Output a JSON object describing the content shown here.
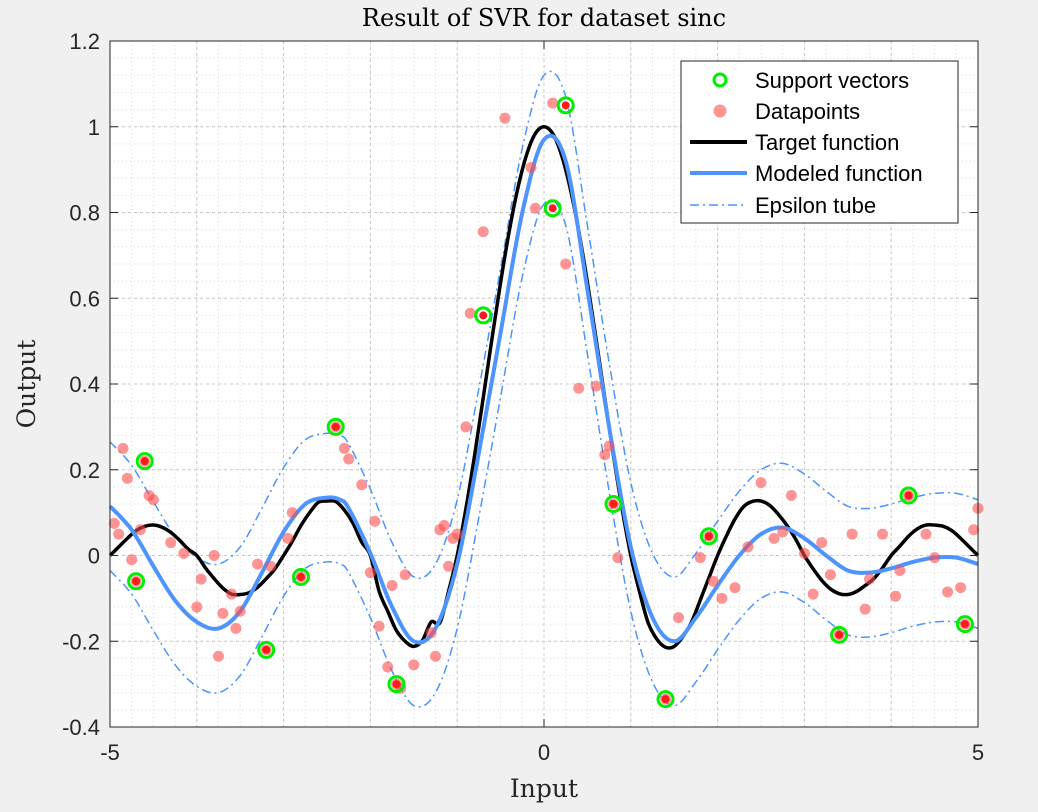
{
  "chart_data": {
    "type": "scatter",
    "title": "Result of SVR for dataset sinc",
    "xlabel": "Input",
    "ylabel": "Output",
    "xlim": [
      -5,
      5
    ],
    "ylim": [
      -0.4,
      1.2
    ],
    "xticks": [
      -5,
      0,
      5
    ],
    "xtick_labels": [
      "-5",
      "0",
      "5"
    ],
    "yticks": [
      -0.4,
      -0.2,
      0,
      0.2,
      0.4,
      0.6,
      0.8,
      1,
      1.2
    ],
    "ytick_labels": [
      "-0.4",
      "-0.2",
      "0",
      "0.2",
      "0.4",
      "0.6",
      "0.8",
      "1",
      "1.2"
    ],
    "grid": true,
    "minor_grid": true,
    "legend_position": "top-right",
    "epsilon": 0.15,
    "colors": {
      "support_vectors": "#00ee00",
      "datapoints": "#ff4d4d",
      "target": "#000000",
      "modeled": "#4d94ff",
      "epsilon_tube": "#4d94ff",
      "plot_background": "#ffffff",
      "figure_background": "#f0f0f0"
    },
    "series": [
      {
        "name": "Support vectors",
        "kind": "scatter",
        "marker": "open-circle",
        "x": [
          -4.7,
          -4.6,
          -3.2,
          -2.8,
          -2.4,
          -1.7,
          -0.7,
          0.1,
          0.25,
          0.8,
          1.4,
          1.9,
          3.4,
          4.2,
          4.85
        ],
        "y": [
          -0.06,
          0.22,
          -0.22,
          -0.05,
          0.3,
          -0.3,
          0.56,
          0.81,
          1.05,
          0.12,
          -0.335,
          0.045,
          -0.185,
          0.14,
          -0.16
        ]
      },
      {
        "name": "Datapoints",
        "kind": "scatter",
        "marker": "filled-circle",
        "x": [
          -4.95,
          -4.9,
          -4.85,
          -4.8,
          -4.75,
          -4.7,
          -4.65,
          -4.6,
          -4.55,
          -4.5,
          -4.3,
          -4.15,
          -4.0,
          -3.95,
          -3.8,
          -3.75,
          -3.7,
          -3.6,
          -3.55,
          -3.5,
          -3.3,
          -3.2,
          -3.15,
          -2.95,
          -2.9,
          -2.8,
          -2.4,
          -2.3,
          -2.25,
          -2.1,
          -2.0,
          -1.95,
          -1.9,
          -1.8,
          -1.75,
          -1.7,
          -1.65,
          -1.6,
          -1.5,
          -1.3,
          -1.25,
          -1.2,
          -1.15,
          -1.1,
          -1.05,
          -1.0,
          -0.9,
          -0.85,
          -0.7,
          -0.45,
          -0.15,
          -0.1,
          0.1,
          0.25,
          0.4,
          0.6,
          0.7,
          0.75,
          0.8,
          0.85,
          1.4,
          1.55,
          1.8,
          1.9,
          1.95,
          2.05,
          2.2,
          2.35,
          2.5,
          2.65,
          2.75,
          2.85,
          3.0,
          3.1,
          3.2,
          3.3,
          3.4,
          3.55,
          3.7,
          3.75,
          3.9,
          4.05,
          4.1,
          4.2,
          4.4,
          4.5,
          4.65,
          4.8,
          4.85,
          4.95,
          5.0
        ],
        "y": [
          0.075,
          0.05,
          0.25,
          0.18,
          -0.01,
          -0.06,
          0.06,
          0.22,
          0.14,
          0.13,
          0.03,
          0.005,
          -0.12,
          -0.055,
          0.0,
          -0.235,
          -0.135,
          -0.09,
          -0.17,
          -0.13,
          -0.02,
          -0.22,
          -0.025,
          0.04,
          0.1,
          -0.05,
          0.3,
          0.25,
          0.225,
          0.165,
          -0.04,
          0.08,
          -0.165,
          -0.26,
          -0.07,
          -0.3,
          -0.31,
          -0.045,
          -0.255,
          -0.18,
          -0.235,
          0.06,
          0.07,
          -0.025,
          0.04,
          0.05,
          0.3,
          0.565,
          0.755,
          1.02,
          0.905,
          0.81,
          1.055,
          0.68,
          0.39,
          0.395,
          0.235,
          0.255,
          0.12,
          -0.005,
          -0.335,
          -0.145,
          -0.005,
          0.045,
          -0.06,
          -0.1,
          -0.075,
          0.02,
          0.17,
          0.04,
          0.055,
          0.14,
          0.005,
          -0.09,
          0.03,
          -0.045,
          -0.185,
          0.05,
          -0.125,
          -0.055,
          0.05,
          -0.095,
          -0.035,
          0.14,
          0.05,
          -0.005,
          -0.085,
          -0.075,
          -0.16,
          0.06,
          0.11
        ]
      },
      {
        "name": "Target function",
        "kind": "line",
        "function": "sinc",
        "x": [
          -5.0,
          -4.9,
          -4.8,
          -4.7,
          -4.6,
          -4.5,
          -4.4,
          -4.3,
          -4.2,
          -4.1,
          -4.0,
          -3.9,
          -3.8,
          -3.7,
          -3.6,
          -3.5,
          -3.4,
          -3.3,
          -3.2,
          -3.1,
          -3.0,
          -2.9,
          -2.8,
          -2.7,
          -2.6,
          -2.5,
          -2.4,
          -2.3,
          -2.2,
          -2.1,
          -2.0,
          -1.9,
          -1.8,
          -1.7,
          -1.6,
          -1.5,
          -1.4,
          -1.3,
          -1.2,
          -1.1,
          -1.0,
          -0.9,
          -0.8,
          -0.7,
          -0.6,
          -0.5,
          -0.4,
          -0.3,
          -0.2,
          -0.1,
          0.0,
          0.1,
          0.2,
          0.3,
          0.4,
          0.5,
          0.6,
          0.7,
          0.8,
          0.9,
          1.0,
          1.1,
          1.2,
          1.3,
          1.4,
          1.5,
          1.6,
          1.7,
          1.8,
          1.9,
          2.0,
          2.1,
          2.2,
          2.3,
          2.4,
          2.5,
          2.6,
          2.7,
          2.8,
          2.9,
          3.0,
          3.1,
          3.2,
          3.3,
          3.4,
          3.5,
          3.6,
          3.7,
          3.8,
          3.9,
          4.0,
          4.1,
          4.2,
          4.3,
          4.4,
          4.5,
          4.6,
          4.7,
          4.8,
          4.9,
          5.0
        ],
        "y": [
          0.0,
          0.02,
          0.04,
          0.058,
          0.068,
          0.071,
          0.066,
          0.054,
          0.036,
          0.015,
          0.0,
          -0.029,
          -0.054,
          -0.076,
          -0.09,
          -0.091,
          -0.087,
          -0.074,
          -0.054,
          -0.031,
          0.0,
          0.033,
          0.07,
          0.1,
          0.124,
          0.127,
          0.126,
          0.106,
          0.075,
          0.031,
          0.0,
          -0.083,
          -0.13,
          -0.175,
          -0.2,
          -0.212,
          -0.198,
          -0.155,
          -0.157,
          -0.084,
          0.0,
          0.109,
          0.233,
          0.368,
          0.505,
          0.637,
          0.757,
          0.858,
          0.935,
          0.984,
          1.0,
          0.984,
          0.935,
          0.858,
          0.757,
          0.637,
          0.505,
          0.368,
          0.233,
          0.109,
          0.0,
          -0.084,
          -0.157,
          -0.195,
          -0.214,
          -0.212,
          -0.189,
          -0.155,
          -0.104,
          -0.052,
          0.0,
          0.045,
          0.085,
          0.114,
          0.126,
          0.127,
          0.117,
          0.096,
          0.07,
          0.038,
          0.0,
          -0.031,
          -0.058,
          -0.078,
          -0.089,
          -0.091,
          -0.084,
          -0.07,
          -0.054,
          -0.029,
          0.0,
          0.022,
          0.045,
          0.062,
          0.071,
          0.071,
          0.068,
          0.058,
          0.04,
          0.02,
          0.0
        ]
      },
      {
        "name": "Modeled function",
        "kind": "line",
        "x": [
          -5.0,
          -4.75,
          -4.5,
          -4.25,
          -4.0,
          -3.75,
          -3.5,
          -3.25,
          -3.0,
          -2.75,
          -2.5,
          -2.35,
          -2.25,
          -2.0,
          -1.75,
          -1.5,
          -1.25,
          -1.0,
          -0.75,
          -0.5,
          -0.25,
          0.0,
          0.25,
          0.5,
          0.75,
          1.0,
          1.25,
          1.5,
          1.75,
          2.0,
          2.25,
          2.5,
          2.75,
          3.0,
          3.25,
          3.5,
          3.75,
          4.0,
          4.25,
          4.5,
          4.75,
          5.0
        ],
        "y": [
          0.115,
          0.06,
          -0.025,
          -0.105,
          -0.155,
          -0.17,
          -0.13,
          -0.04,
          0.055,
          0.12,
          0.135,
          0.13,
          0.11,
          0.005,
          -0.12,
          -0.2,
          -0.17,
          -0.02,
          0.24,
          0.52,
          0.8,
          0.97,
          0.92,
          0.62,
          0.3,
          0.02,
          -0.145,
          -0.2,
          -0.145,
          -0.07,
          0.0,
          0.05,
          0.065,
          0.04,
          0.0,
          -0.035,
          -0.04,
          -0.03,
          -0.015,
          -0.005,
          -0.005,
          -0.02
        ]
      },
      {
        "name": "Epsilon tube",
        "kind": "line-pair",
        "description_offset": "Modeled function ± epsilon"
      }
    ]
  }
}
